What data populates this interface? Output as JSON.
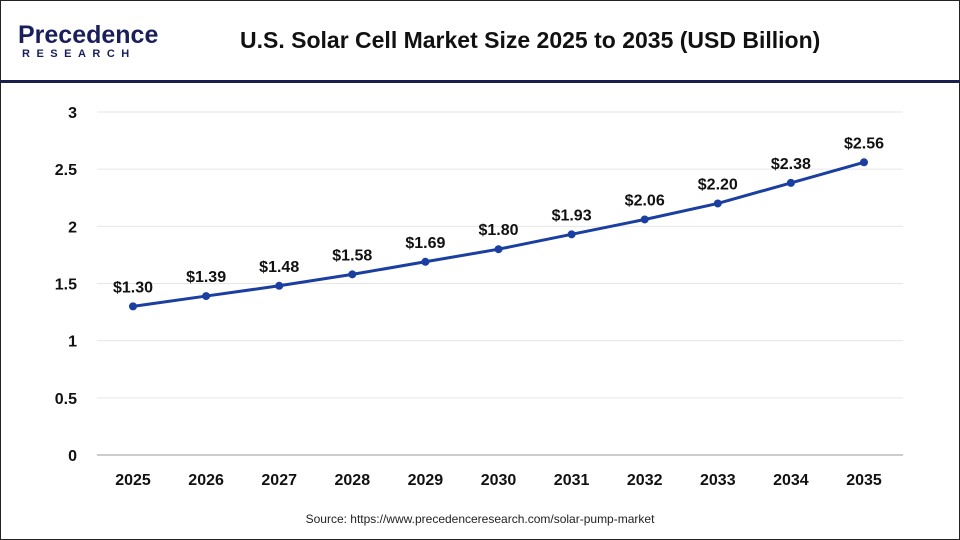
{
  "header": {
    "logo_line1": "Precedence",
    "logo_line2": "RESEARCH",
    "title": "U.S. Solar Cell Market Size 2025 to 2035 (USD Billion)"
  },
  "chart_data": {
    "type": "line",
    "title": "U.S. Solar Cell Market Size 2025 to 2035 (USD Billion)",
    "categories": [
      "2025",
      "2026",
      "2027",
      "2028",
      "2029",
      "2030",
      "2031",
      "2032",
      "2033",
      "2034",
      "2035"
    ],
    "values": [
      1.3,
      1.39,
      1.48,
      1.58,
      1.69,
      1.8,
      1.93,
      2.06,
      2.2,
      2.38,
      2.56
    ],
    "data_labels": [
      "$1.30",
      "$1.39",
      "$1.48",
      "$1.58",
      "$1.69",
      "$1.80",
      "$1.93",
      "$2.06",
      "$2.20",
      "$2.38",
      "$2.56"
    ],
    "yticks": [
      "0",
      "0.5",
      "1",
      "1.5",
      "2",
      "2.5",
      "3"
    ],
    "ylim": [
      0,
      3
    ],
    "grid": true,
    "line_color": "#1a3fa0",
    "xlabel": "",
    "ylabel": ""
  },
  "footer": {
    "source": "Source: https://www.precedenceresearch.com/solar-pump-market"
  }
}
